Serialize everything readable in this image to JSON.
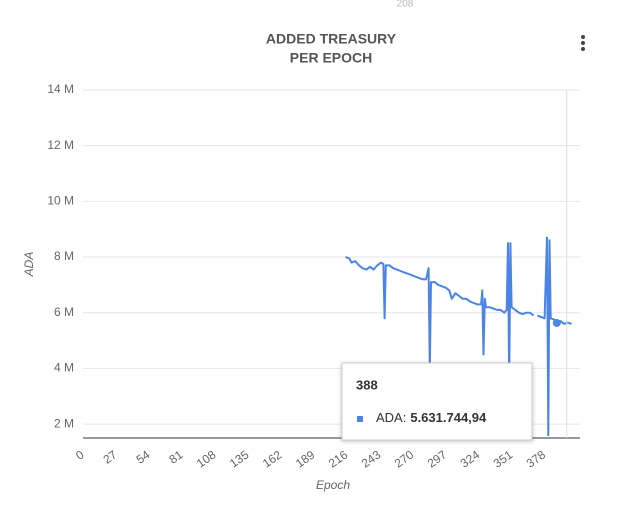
{
  "top_label": "208",
  "chart_data": {
    "type": "line",
    "title": "ADDED TREASURY",
    "subtitle": "PER EPOCH",
    "x_label": "Epoch",
    "y_label": "ADA",
    "xlim": [
      0,
      407
    ],
    "ylim": [
      1500000,
      14000000
    ],
    "xticks": [
      0,
      27,
      54,
      81,
      108,
      135,
      162,
      189,
      216,
      243,
      270,
      297,
      324,
      351,
      378
    ],
    "yticks": [
      {
        "value": 2000000,
        "label": "2 M"
      },
      {
        "value": 4000000,
        "label": "4 M"
      },
      {
        "value": 6000000,
        "label": "6 M"
      },
      {
        "value": 8000000,
        "label": "8 M"
      },
      {
        "value": 10000000,
        "label": "10 M"
      },
      {
        "value": 12000000,
        "label": "12 M"
      },
      {
        "value": 14000000,
        "label": "14 M"
      }
    ],
    "grid": true,
    "x": [
      215,
      218,
      220,
      223,
      226,
      229,
      232,
      235,
      238,
      241,
      244,
      246,
      247,
      248,
      251,
      254,
      257,
      260,
      263,
      266,
      269,
      272,
      275,
      278,
      281,
      283,
      284,
      285,
      288,
      291,
      294,
      297,
      300,
      302,
      305,
      308,
      311,
      314,
      317,
      320,
      323,
      326,
      327,
      328,
      329,
      330,
      333,
      336,
      339,
      342,
      345,
      347,
      348,
      349,
      350,
      351,
      354,
      357,
      360,
      363,
      366,
      369,
      370,
      372,
      375,
      378,
      380,
      381,
      382,
      383,
      386,
      388,
      391,
      394,
      397,
      400
    ],
    "series": [
      {
        "name": "ADA",
        "color": "#4a84e6",
        "values": [
          8000000,
          7950000,
          7800000,
          7850000,
          7700000,
          7600000,
          7550000,
          7650000,
          7550000,
          7700000,
          7800000,
          7750000,
          5800000,
          7700000,
          7700000,
          7600000,
          7550000,
          7500000,
          7450000,
          7400000,
          7350000,
          7300000,
          7250000,
          7200000,
          7200000,
          7600000,
          4000000,
          7100000,
          7100000,
          7000000,
          6950000,
          6900000,
          6800000,
          6500000,
          6700000,
          6600000,
          6500000,
          6500000,
          6400000,
          6350000,
          6300000,
          6300000,
          6800000,
          4500000,
          6500000,
          6200000,
          6200000,
          6150000,
          6100000,
          6100000,
          6000000,
          6100000,
          8500000,
          3500000,
          8500000,
          6200000,
          6100000,
          6000000,
          5950000,
          6000000,
          6000000,
          5900000,
          null,
          5900000,
          5850000,
          5800000,
          8700000,
          1600000,
          8600000,
          5800000,
          5750000,
          5631744.94,
          5700000,
          5600000,
          5650000,
          5600000
        ]
      }
    ],
    "tooltip": {
      "title": "388",
      "label": "ADA:",
      "value_label": "5.631.744,94"
    }
  }
}
